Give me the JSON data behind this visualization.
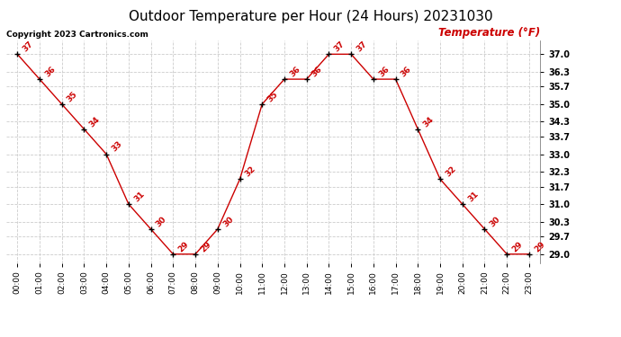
{
  "title": "Outdoor Temperature per Hour (24 Hours) 20231030",
  "copyright": "Copyright 2023 Cartronics.com",
  "legend_label": "Temperature (°F)",
  "hours": [
    "00:00",
    "01:00",
    "02:00",
    "03:00",
    "04:00",
    "05:00",
    "06:00",
    "07:00",
    "08:00",
    "09:00",
    "10:00",
    "11:00",
    "12:00",
    "13:00",
    "14:00",
    "15:00",
    "16:00",
    "17:00",
    "18:00",
    "19:00",
    "20:00",
    "21:00",
    "22:00",
    "23:00"
  ],
  "temperatures": [
    37,
    36,
    35,
    34,
    33,
    31,
    30,
    29,
    29,
    30,
    32,
    35,
    36,
    36,
    37,
    37,
    36,
    36,
    34,
    32,
    31,
    30,
    29,
    29
  ],
  "line_color": "#cc0000",
  "marker_color": "#000000",
  "label_color": "#cc0000",
  "grid_color": "#cccccc",
  "background_color": "#ffffff",
  "title_fontsize": 11,
  "copyright_fontsize": 6.5,
  "legend_fontsize": 8.5,
  "label_fontsize": 6.5,
  "ytick_labels": [
    29.0,
    29.7,
    30.3,
    31.0,
    31.7,
    32.3,
    33.0,
    33.7,
    34.3,
    35.0,
    35.7,
    36.3,
    37.0
  ],
  "ylim_min": 28.65,
  "ylim_max": 37.55
}
